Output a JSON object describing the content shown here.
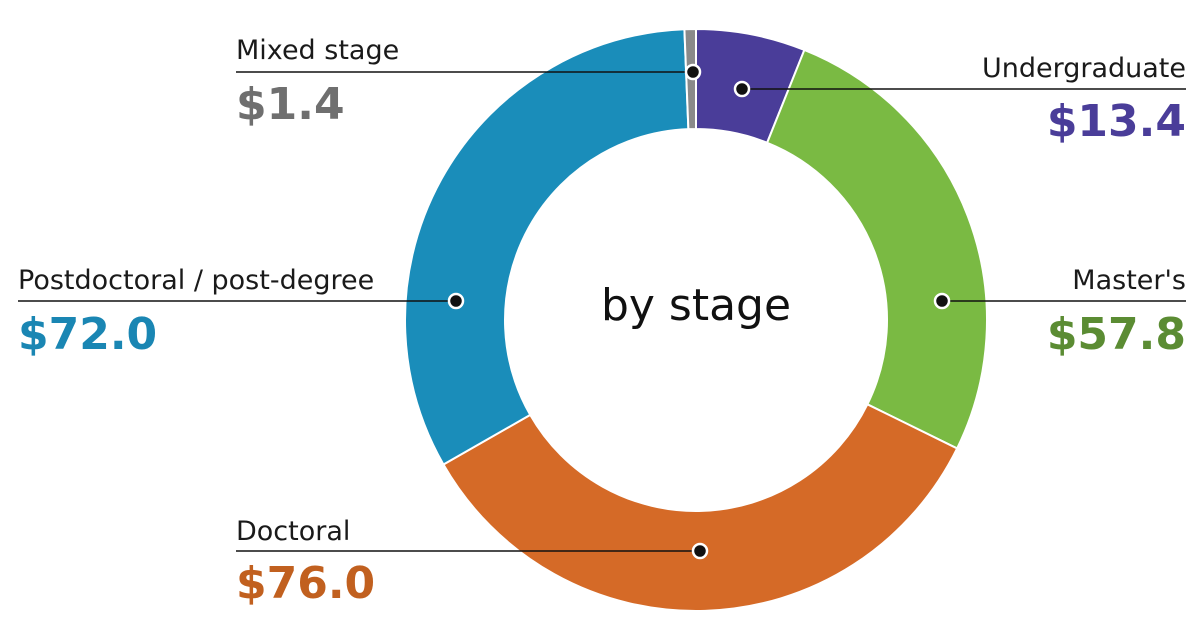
{
  "chart_data": {
    "type": "pie",
    "variant": "donut",
    "title": "by stage",
    "legend": "none",
    "slices": [
      {
        "label": "Undergraduate",
        "value": 13.4,
        "display": "$13.4",
        "color": "#4a3d99",
        "text_color": "#4a3d99"
      },
      {
        "label": "Master's",
        "value": 57.8,
        "display": "$57.8",
        "color": "#7aba43",
        "text_color": "#5b8c33"
      },
      {
        "label": "Doctoral",
        "value": 76.0,
        "display": "$76.0",
        "color": "#d56a27",
        "text_color": "#c1601f"
      },
      {
        "label": "Postdoctoral / post-degree",
        "value": 72.0,
        "display": "$72.0",
        "color": "#1a8dba",
        "text_color": "#1a86b3"
      },
      {
        "label": "Mixed stage",
        "value": 1.4,
        "display": "$1.4",
        "color": "#8a8a8a",
        "text_color": "#6f6f6f"
      }
    ]
  }
}
